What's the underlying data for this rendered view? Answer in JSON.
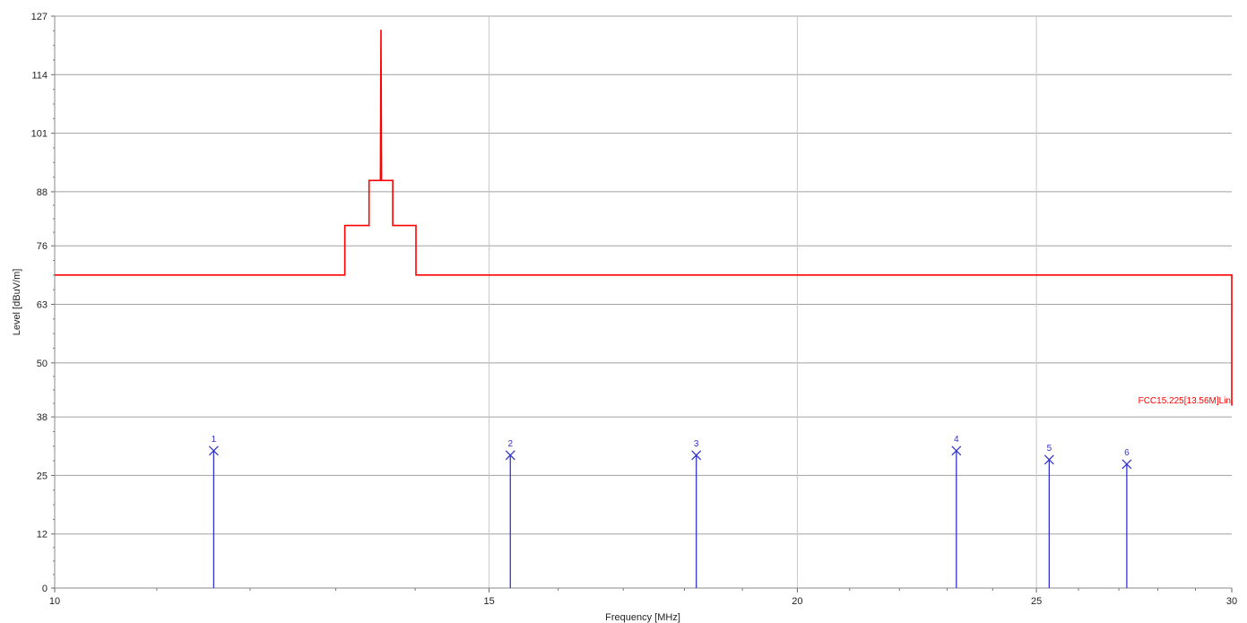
{
  "chart_data": {
    "type": "line",
    "xlabel": "Frequency [MHz]",
    "ylabel": "Level [dBuV/m]",
    "x_scale": "log",
    "xlim": [
      10,
      30
    ],
    "ylim": [
      0,
      127
    ],
    "x_ticks": [
      {
        "value": 10,
        "label": "10"
      },
      {
        "value": 15,
        "label": "15"
      },
      {
        "value": 20,
        "label": "20"
      },
      {
        "value": 25,
        "label": "25"
      },
      {
        "value": 30,
        "label": "30"
      }
    ],
    "y_ticks": [
      {
        "value": 0,
        "label": "0"
      },
      {
        "value": 12,
        "label": "12"
      },
      {
        "value": 25,
        "label": "25"
      },
      {
        "value": 38,
        "label": "38"
      },
      {
        "value": 50,
        "label": "50"
      },
      {
        "value": 63,
        "label": "63"
      },
      {
        "value": 76,
        "label": "76"
      },
      {
        "value": 88,
        "label": "88"
      },
      {
        "value": 101,
        "label": "101"
      },
      {
        "value": 114,
        "label": "114"
      },
      {
        "value": 127,
        "label": "127"
      }
    ],
    "grid": true,
    "limit_line": {
      "label": "FCC15.225[13.56M]Lin",
      "color": "#ff0000",
      "points": [
        [
          10,
          69.5
        ],
        [
          13.11,
          69.5
        ],
        [
          13.11,
          80.5
        ],
        [
          13.41,
          80.5
        ],
        [
          13.41,
          90.5
        ],
        [
          13.553,
          90.5
        ],
        [
          13.56,
          124
        ],
        [
          13.567,
          90.5
        ],
        [
          13.71,
          90.5
        ],
        [
          13.71,
          80.5
        ],
        [
          14.01,
          80.5
        ],
        [
          14.01,
          69.5
        ],
        [
          30,
          69.5
        ],
        [
          30,
          40.5
        ]
      ]
    },
    "markers": {
      "color": "#3333cc",
      "points": [
        {
          "label": "1",
          "x": 11.6,
          "y": 30.5
        },
        {
          "label": "2",
          "x": 15.3,
          "y": 29.5
        },
        {
          "label": "3",
          "x": 18.2,
          "y": 29.5
        },
        {
          "label": "4",
          "x": 23.2,
          "y": 30.5
        },
        {
          "label": "5",
          "x": 25.3,
          "y": 28.5
        },
        {
          "label": "6",
          "x": 27.2,
          "y": 27.5
        }
      ]
    }
  }
}
